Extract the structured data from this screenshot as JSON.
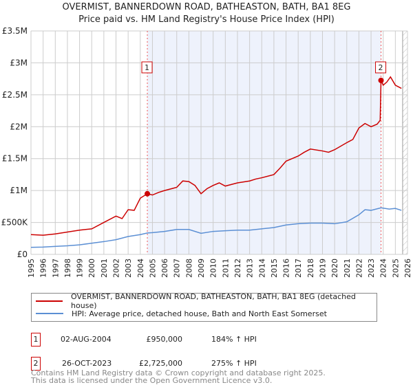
{
  "title": "OVERMIST, BANNERDOWN ROAD, BATHEASTON, BATH, BA1 8EG",
  "subtitle": "Price paid vs. HM Land Registry's House Price Index (HPI)",
  "colors": {
    "property": "#cc0000",
    "hpi": "#5b8fd4",
    "shade": "#eef2fc"
  },
  "chart_data": {
    "type": "line",
    "title": "OVERMIST, BANNERDOWN ROAD, BATHEASTON, BATH, BA1 8EG",
    "xlim": [
      1995,
      2026
    ],
    "ylim": [
      0,
      3500000
    ],
    "y_ticks": [
      {
        "v": 0,
        "label": "£0"
      },
      {
        "v": 500000,
        "label": "£500K"
      },
      {
        "v": 1000000,
        "label": "£1M"
      },
      {
        "v": 1500000,
        "label": "£1.5M"
      },
      {
        "v": 2000000,
        "label": "£2M"
      },
      {
        "v": 2500000,
        "label": "£2.5M"
      },
      {
        "v": 3000000,
        "label": "£3M"
      },
      {
        "v": 3500000,
        "label": "£3.5M"
      }
    ],
    "x_ticks": [
      "1995",
      "1996",
      "1997",
      "1998",
      "1999",
      "2000",
      "2001",
      "2002",
      "2003",
      "2004",
      "2005",
      "2006",
      "2007",
      "2008",
      "2009",
      "2010",
      "2011",
      "2012",
      "2013",
      "2014",
      "2015",
      "2016",
      "2017",
      "2018",
      "2019",
      "2020",
      "2021",
      "2022",
      "2023",
      "2024",
      "2025",
      "2026"
    ],
    "forecast_from": 2025.6,
    "series": [
      {
        "name": "OVERMIST, BANNERDOWN ROAD, BATHEASTON, BATH, BA1 8EG (detached house)",
        "color": "#cc0000",
        "x": [
          1995,
          1996,
          1997,
          1998,
          1999,
          2000,
          2001,
          2002,
          2002.5,
          2003,
          2003.5,
          2004,
          2004.58,
          2005,
          2005.5,
          2006,
          2007,
          2007.5,
          2008,
          2008.5,
          2009,
          2009.5,
          2010,
          2010.5,
          2011,
          2012,
          2013,
          2013.5,
          2014,
          2015,
          2015.5,
          2016,
          2016.5,
          2017,
          2017.5,
          2018,
          2019,
          2019.5,
          2020,
          2021,
          2021.5,
          2022,
          2022.5,
          2023,
          2023.5,
          2023.75,
          2023.82,
          2024,
          2024.3,
          2024.6,
          2025,
          2025.5
        ],
        "y": [
          310000,
          300000,
          320000,
          350000,
          380000,
          400000,
          500000,
          600000,
          560000,
          700000,
          690000,
          880000,
          950000,
          930000,
          970000,
          1000000,
          1050000,
          1150000,
          1140000,
          1080000,
          950000,
          1030000,
          1080000,
          1120000,
          1070000,
          1120000,
          1150000,
          1180000,
          1200000,
          1250000,
          1350000,
          1460000,
          1500000,
          1540000,
          1600000,
          1650000,
          1620000,
          1600000,
          1640000,
          1750000,
          1800000,
          1980000,
          2050000,
          2000000,
          2040000,
          2100000,
          2725000,
          2650000,
          2700000,
          2780000,
          2650000,
          2600000
        ]
      },
      {
        "name": "HPI: Average price, detached house, Bath and North East Somerset",
        "color": "#5b8fd4",
        "x": [
          1995,
          1996,
          1997,
          1998,
          1999,
          2000,
          2001,
          2002,
          2003,
          2004,
          2004.58,
          2005,
          2006,
          2007,
          2008,
          2009,
          2010,
          2011,
          2012,
          2013,
          2014,
          2015,
          2016,
          2017,
          2018,
          2019,
          2020,
          2021,
          2022,
          2022.5,
          2023,
          2023.82,
          2024.5,
          2025,
          2025.5
        ],
        "y": [
          110000,
          115000,
          125000,
          135000,
          150000,
          175000,
          200000,
          230000,
          280000,
          310000,
          335000,
          340000,
          360000,
          390000,
          390000,
          330000,
          360000,
          370000,
          380000,
          380000,
          400000,
          420000,
          460000,
          480000,
          490000,
          490000,
          480000,
          510000,
          620000,
          700000,
          690000,
          730000,
          710000,
          720000,
          690000
        ]
      }
    ],
    "sales": [
      {
        "label": "1",
        "x": 2004.58,
        "y": 950000
      },
      {
        "label": "2",
        "x": 2023.82,
        "y": 2725000
      }
    ]
  },
  "legend": {
    "property": "OVERMIST, BANNERDOWN ROAD, BATHEASTON, BATH, BA1 8EG (detached house)",
    "hpi": "HPI: Average price, detached house, Bath and North East Somerset"
  },
  "transactions": [
    {
      "num": "1",
      "date": "02-AUG-2004",
      "price": "£950,000",
      "hpi": "184% ↑ HPI"
    },
    {
      "num": "2",
      "date": "26-OCT-2023",
      "price": "£2,725,000",
      "hpi": "275% ↑ HPI"
    }
  ],
  "footer": {
    "line1": "Contains HM Land Registry data © Crown copyright and database right 2025.",
    "line2": "This data is licensed under the Open Government Licence v3.0."
  }
}
